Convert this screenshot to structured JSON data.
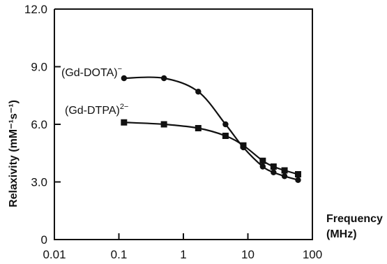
{
  "chart_data": {
    "type": "line",
    "title": "",
    "xlabel": "Frequency\n(MHz)",
    "ylabel": "Relaxivity (mM⁻¹s⁻¹)",
    "x_scale": "log",
    "xlim": [
      0.01,
      100
    ],
    "ylim": [
      0,
      12.0
    ],
    "x_ticks": [
      "0.01",
      "0.1",
      "1",
      "10",
      "100"
    ],
    "y_ticks": [
      "0",
      "3.0",
      "6.0",
      "9.0",
      "12.0"
    ],
    "grid": false,
    "series": [
      {
        "name": "(Gd-DOTA)⁻",
        "marker": "circle",
        "x": [
          0.12,
          0.5,
          1.7,
          4.5,
          8.5,
          17,
          25,
          37,
          60
        ],
        "y": [
          8.4,
          8.4,
          7.7,
          6.0,
          4.8,
          3.8,
          3.5,
          3.3,
          3.1
        ]
      },
      {
        "name": "(Gd-DTPA)²⁻",
        "marker": "square",
        "x": [
          0.12,
          0.5,
          1.7,
          4.5,
          8.5,
          17,
          25,
          37,
          60
        ],
        "y": [
          6.1,
          6.0,
          5.8,
          5.4,
          4.9,
          4.1,
          3.8,
          3.6,
          3.4
        ]
      }
    ],
    "labels": {
      "dota": {
        "text": "(Gd-DOTA)",
        "sup": "−"
      },
      "dtpa": {
        "text": "(Gd-DTPA)",
        "sup": "2−"
      }
    }
  }
}
